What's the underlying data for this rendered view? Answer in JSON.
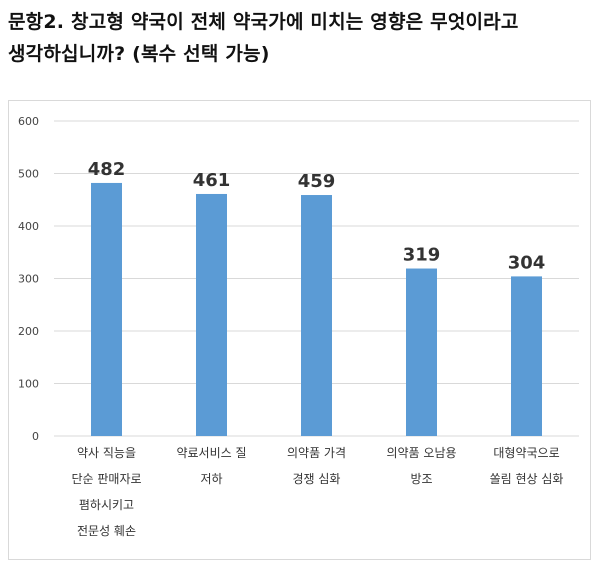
{
  "question": {
    "line1": "문항2. 창고형 약국이 전체 약국가에 미치는 영향은 무엇이라고",
    "line2": "생각하십니까? (복수 선택 가능)"
  },
  "colors": {
    "bar": "#5b9bd5",
    "grid": "#d9d9d9",
    "text": "#333333"
  },
  "chart_data": {
    "type": "bar",
    "categories": [
      [
        "약사 직능을",
        "단순 판매자로",
        "폄하시키고",
        "전문성 훼손"
      ],
      [
        "약료서비스 질",
        "저하"
      ],
      [
        "의약품 가격",
        "경쟁 심화"
      ],
      [
        "의약품 오남용",
        "방조"
      ],
      [
        "대형약국으로",
        "쏠림 현상 심화"
      ]
    ],
    "values": [
      482,
      461,
      459,
      319,
      304
    ],
    "data_labels": [
      "482",
      "461",
      "459",
      "319",
      "304"
    ],
    "yticks": [
      "0",
      "100",
      "200",
      "300",
      "400",
      "500",
      "600"
    ],
    "ylim": [
      0,
      600
    ],
    "grid": true
  }
}
